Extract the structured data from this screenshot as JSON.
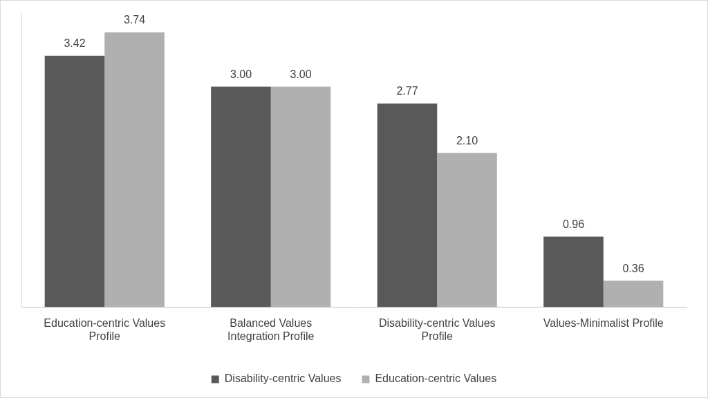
{
  "chart_data": {
    "type": "bar",
    "categories": [
      "Education-centric Values Profile",
      "Balanced Values Integration Profile",
      "Disability-centric Values Profile",
      "Values-Minimalist Profile"
    ],
    "series": [
      {
        "name": "Disability-centric Values",
        "color": "#595959",
        "values": [
          3.42,
          3,
          2.77,
          0.96
        ],
        "value_labels": [
          "3.42",
          "3.00",
          "2.77",
          "0.96"
        ]
      },
      {
        "name": "Education-centric Values",
        "color": "#b0b0b0",
        "values": [
          3.74,
          3,
          2.1,
          0.36
        ],
        "value_labels": [
          "3.74",
          "3.00",
          "2.10",
          "0.36"
        ]
      }
    ],
    "ylim": [
      0,
      4
    ],
    "grid": false,
    "legend": "bottom",
    "data_labels": true,
    "tick_labels": "x"
  }
}
